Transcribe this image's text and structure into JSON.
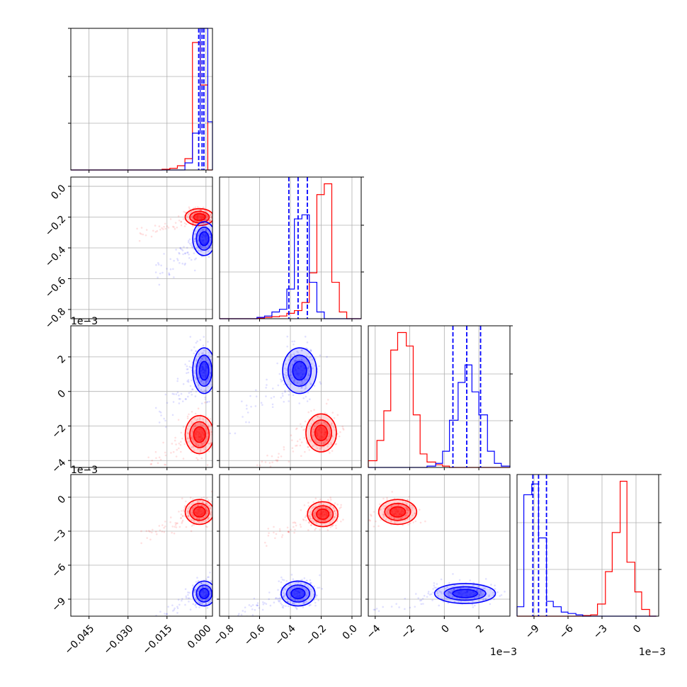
{
  "chart_data": {
    "type": "corner",
    "variables": 4,
    "colors": {
      "series_a": "#ff0000",
      "series_b": "#0000ff"
    },
    "series": [
      {
        "color": "#ff0000"
      },
      {
        "color": "#0000ff"
      }
    ],
    "quantile_lines": {
      "series": 1,
      "style": "dashed",
      "levels": [
        0.16,
        0.5,
        0.84
      ]
    },
    "grid": true,
    "axes": [
      {
        "index": 0,
        "range": [
          -0.052,
          0.0025
        ],
        "ticks": [
          -0.045,
          -0.03,
          -0.015,
          0.0
        ],
        "tick_labels": [
          "−0.045",
          "−0.030",
          "−0.015",
          "0.000"
        ],
        "offset_label": ""
      },
      {
        "index": 1,
        "range": [
          -0.86,
          0.06
        ],
        "ticks": [
          -0.8,
          -0.6,
          -0.4,
          -0.2,
          0.0
        ],
        "tick_labels": [
          "−0.8",
          "−0.6",
          "−0.4",
          "−0.2",
          "0.0"
        ],
        "offset_label": ""
      },
      {
        "index": 2,
        "range": [
          -0.0044,
          0.0038
        ],
        "ticks": [
          -0.004,
          -0.002,
          0.0,
          0.002
        ],
        "tick_labels": [
          "−4",
          "−2",
          "0",
          "2"
        ],
        "offset_label": "1e−3"
      },
      {
        "index": 3,
        "range": [
          -0.0105,
          0.002
        ],
        "ticks": [
          -0.009,
          -0.006,
          -0.003,
          0.0
        ],
        "tick_labels": [
          "−9",
          "−6",
          "−3",
          "0"
        ],
        "offset_label": "1e−3"
      }
    ],
    "histograms": [
      {
        "panel": 0,
        "bins": [
          -0.052,
          -0.0491,
          -0.0461,
          -0.0432,
          -0.0403,
          -0.0374,
          -0.0344,
          -0.0315,
          -0.0286,
          -0.0256,
          -0.0227,
          -0.0198,
          -0.0169,
          -0.0139,
          -0.011,
          -0.0081,
          -0.0052,
          -0.0022,
          0.0007,
          0.0025
        ],
        "ylim": [
          0,
          1.0
        ],
        "series_a_counts": [
          0,
          0,
          0,
          0,
          0,
          0,
          0,
          0,
          0,
          0,
          0,
          0,
          0.005,
          0.012,
          0.03,
          0.08,
          0.9,
          0.6,
          0.0
        ],
        "series_b_counts": [
          0,
          0,
          0,
          0,
          0,
          0,
          0,
          0,
          0,
          0,
          0,
          0,
          0,
          0,
          0,
          0.05,
          0.26,
          1.0,
          0.34
        ],
        "quantiles": [
          -0.0028,
          -0.0015,
          -0.0008
        ]
      },
      {
        "panel": 1,
        "bins": [
          -0.86,
          -0.811,
          -0.763,
          -0.714,
          -0.666,
          -0.617,
          -0.568,
          -0.52,
          -0.471,
          -0.423,
          -0.374,
          -0.325,
          -0.277,
          -0.228,
          -0.18,
          -0.131,
          -0.082,
          -0.034,
          0.015,
          0.06
        ],
        "ylim": [
          0,
          1.05
        ],
        "series_a_counts": [
          0,
          0,
          0,
          0,
          0,
          0.005,
          0.01,
          0.015,
          0.02,
          0.04,
          0.06,
          0.12,
          0.34,
          0.92,
          1.0,
          0.27,
          0.05,
          0.0,
          0.0
        ],
        "series_b_counts": [
          0,
          0,
          0,
          0,
          0,
          0.01,
          0.02,
          0.05,
          0.07,
          0.22,
          0.74,
          0.77,
          0.27,
          0.05,
          0.0,
          0.0,
          0.0,
          0.0,
          0.0
        ],
        "quantiles": [
          -0.41,
          -0.35,
          -0.29
        ]
      },
      {
        "panel": 2,
        "bins": [
          -0.0044,
          -0.0039,
          -0.0035,
          -0.0031,
          -0.0027,
          -0.0022,
          -0.0018,
          -0.0014,
          -0.001,
          -0.0005,
          -0.0001,
          0.0003,
          0.0008,
          0.0012,
          0.0016,
          0.002,
          0.0025,
          0.0029,
          0.0033,
          0.0038
        ],
        "ylim": [
          0,
          1.05
        ],
        "series_a_counts": [
          0.05,
          0.2,
          0.42,
          0.87,
          1.0,
          0.9,
          0.39,
          0.1,
          0.04,
          0.02,
          0.01,
          0,
          0,
          0,
          0,
          0,
          0,
          0,
          0
        ],
        "series_b_counts": [
          0,
          0,
          0,
          0,
          0,
          0,
          0,
          0,
          0.01,
          0.03,
          0.12,
          0.35,
          0.63,
          0.76,
          0.56,
          0.39,
          0.12,
          0.03,
          0.01
        ],
        "quantiles": [
          0.0005,
          0.0013,
          0.0021
        ]
      },
      {
        "panel": 3,
        "bins": [
          -0.0105,
          -0.0099,
          -0.0092,
          -0.0086,
          -0.0079,
          -0.0073,
          -0.0066,
          -0.006,
          -0.0053,
          -0.0047,
          -0.004,
          -0.0034,
          -0.0027,
          -0.0021,
          -0.0014,
          -0.0008,
          -0.0001,
          0.0005,
          0.0012,
          0.0018
        ],
        "ylim": [
          0,
          1.05
        ],
        "series_a_counts": [
          0,
          0,
          0,
          0,
          0,
          0,
          0,
          0,
          0,
          0.005,
          0.01,
          0.09,
          0.33,
          0.62,
          1.0,
          0.4,
          0.18,
          0.05,
          0.0
        ],
        "series_b_counts": [
          0.07,
          0.9,
          0.98,
          0.58,
          0.11,
          0.07,
          0.03,
          0.02,
          0.01,
          0.0,
          0,
          0,
          0,
          0,
          0,
          0,
          0,
          0,
          0
        ],
        "quantiles": [
          -0.0091,
          -0.0086,
          -0.0079
        ]
      }
    ],
    "pairs": [
      {
        "x": 0,
        "y": 1,
        "series_a_center": [
          -0.0025,
          -0.2
        ],
        "series_a_spread": [
          0.0025,
          0.025
        ],
        "series_b_center": [
          -0.0007,
          -0.34
        ],
        "series_b_spread": [
          0.002,
          0.05
        ]
      },
      {
        "x": 0,
        "y": 2,
        "series_a_center": [
          -0.0025,
          -0.0025
        ],
        "series_a_spread": [
          0.0025,
          0.0005
        ],
        "series_b_center": [
          -0.0007,
          0.0012
        ],
        "series_b_spread": [
          0.002,
          0.0006
        ]
      },
      {
        "x": 0,
        "y": 3,
        "series_a_center": [
          -0.0025,
          -0.0013
        ],
        "series_a_spread": [
          0.0025,
          0.0005
        ],
        "series_b_center": [
          -0.0007,
          -0.0085
        ],
        "series_b_spread": [
          0.002,
          0.0005
        ]
      },
      {
        "x": 1,
        "y": 2,
        "series_a_center": [
          -0.2,
          -0.0024
        ],
        "series_a_spread": [
          0.045,
          0.0005
        ],
        "series_b_center": [
          -0.34,
          0.0012
        ],
        "series_b_spread": [
          0.05,
          0.0006
        ]
      },
      {
        "x": 1,
        "y": 3,
        "series_a_center": [
          -0.19,
          -0.0015
        ],
        "series_a_spread": [
          0.045,
          0.0005
        ],
        "series_b_center": [
          -0.35,
          -0.0085
        ],
        "series_b_spread": [
          0.05,
          0.0005
        ]
      },
      {
        "x": 2,
        "y": 3,
        "series_a_center": [
          -0.0027,
          -0.0013
        ],
        "series_a_spread": [
          0.0005,
          0.0005
        ],
        "series_b_center": [
          0.0012,
          -0.0085
        ],
        "series_b_spread": [
          0.0008,
          0.0004
        ]
      }
    ]
  }
}
